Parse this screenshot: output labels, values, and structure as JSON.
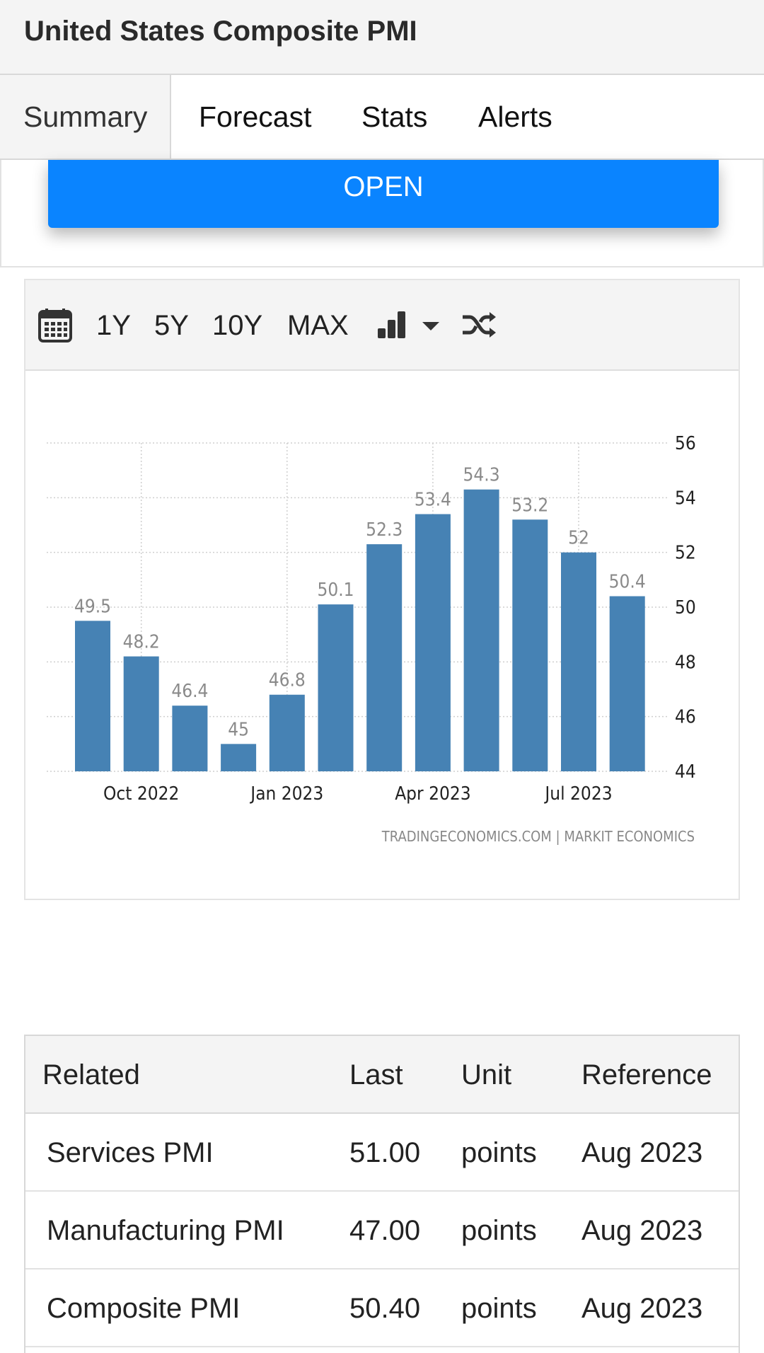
{
  "header": {
    "title": "United States Composite PMI"
  },
  "tabs": [
    {
      "label": "Summary",
      "active": true
    },
    {
      "label": "Forecast",
      "active": false
    },
    {
      "label": "Stats",
      "active": false
    },
    {
      "label": "Alerts",
      "active": false
    }
  ],
  "promo": {
    "button_label": "OPEN",
    "button_color": "#0a84ff"
  },
  "chart_toolbar": {
    "icons": [
      "calendar-icon",
      "bar-chart-icon",
      "caret-down-icon",
      "shuffle-icon"
    ],
    "ranges": [
      "1Y",
      "5Y",
      "10Y",
      "MAX"
    ]
  },
  "chart_data": {
    "type": "bar",
    "categories": [
      "Sep 2022",
      "Oct 2022",
      "Nov 2022",
      "Dec 2022",
      "Jan 2023",
      "Feb 2023",
      "Mar 2023",
      "Apr 2023",
      "May 2023",
      "Jun 2023",
      "Jul 2023",
      "Aug 2023"
    ],
    "values": [
      49.5,
      48.2,
      46.4,
      45,
      46.8,
      50.1,
      52.3,
      53.4,
      54.3,
      53.2,
      52,
      50.4
    ],
    "data_labels": [
      "49.5",
      "48.2",
      "46.4",
      "45",
      "46.8",
      "50.1",
      "52.3",
      "53.4",
      "54.3",
      "53.2",
      "52",
      "50.4"
    ],
    "x_tick_labels": [
      "Oct 2022",
      "Jan 2023",
      "Apr 2023",
      "Jul 2023"
    ],
    "x_tick_categories": [
      "Oct 2022",
      "Jan 2023",
      "Apr 2023",
      "Jul 2023"
    ],
    "y_tick_labels": [
      "56",
      "54",
      "52",
      "50",
      "48",
      "46",
      "44"
    ],
    "ylim": [
      44,
      56
    ],
    "y_axis_side": "right",
    "grid": true,
    "bar_color": "#4682b4",
    "source": "TRADINGECONOMICS.COM  |  MARKIT  ECONOMICS"
  },
  "related_table": {
    "headers": [
      "Related",
      "Last",
      "Unit",
      "Reference"
    ],
    "rows": [
      [
        "Services PMI",
        "51.00",
        "points",
        "Aug 2023"
      ],
      [
        "Manufacturing PMI",
        "47.00",
        "points",
        "Aug 2023"
      ],
      [
        "Composite PMI",
        "50.40",
        "points",
        "Aug 2023"
      ]
    ]
  }
}
